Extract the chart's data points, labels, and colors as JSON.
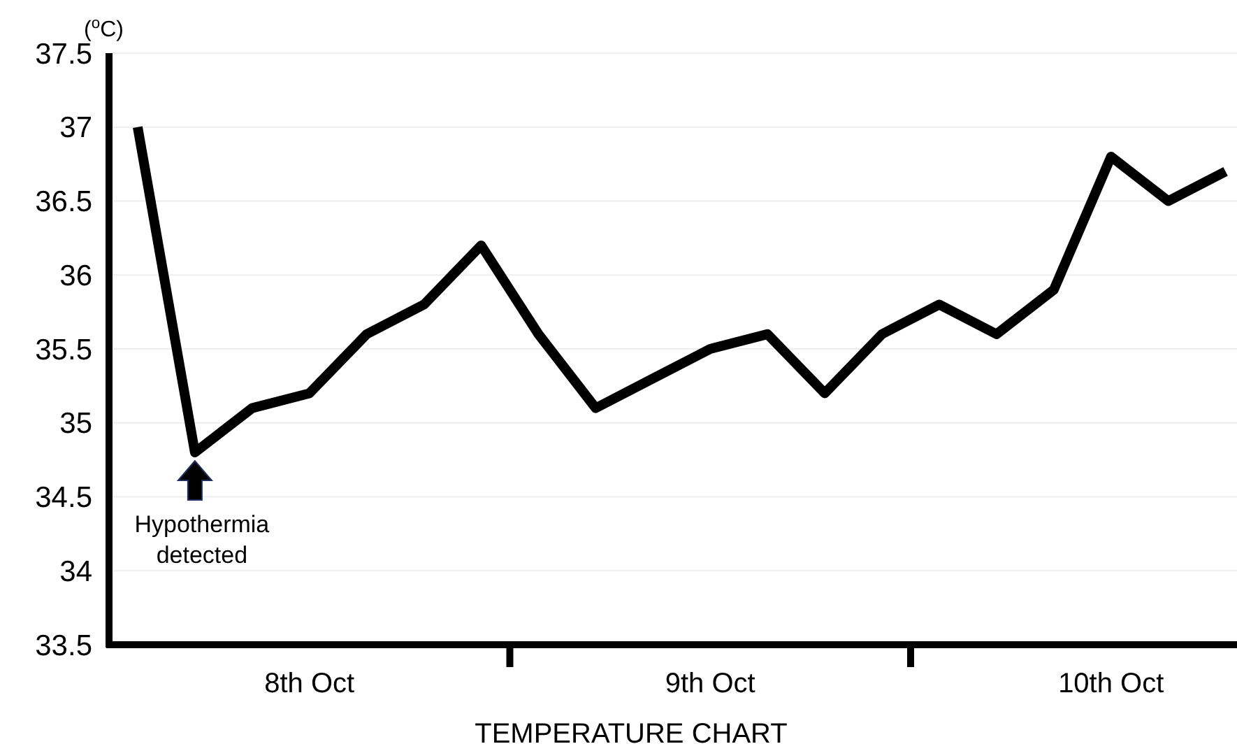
{
  "chart_data": {
    "type": "line",
    "xlabel": "TEMPERATURE CHART",
    "ylabel": "($^{o}$C)",
    "categories": [
      null,
      null,
      null,
      "8th Oct",
      null,
      null,
      null,
      null,
      null,
      null,
      "9th Oct",
      null,
      null,
      null,
      null,
      null,
      null,
      "10th Oct",
      null,
      null
    ],
    "series": [
      {
        "color": "#000000",
        "values": [
          37,
          34.8,
          35.1,
          35.2,
          35.6,
          35.8,
          36.2,
          35.6,
          35.1,
          35.3,
          35.5,
          35.6,
          35.2,
          35.6,
          35.8,
          35.6,
          35.9,
          36.8,
          36.5,
          36.7
        ]
      }
    ],
    "ylim": [
      33.5,
      37.5
    ],
    "yticks": [
      33.5,
      34,
      34.5,
      35,
      35.5,
      36,
      36.5,
      37,
      37.5
    ],
    "grid": "y",
    "marker": "none",
    "line_style": "solid",
    "annotations": [
      {
        "text": "Hypothermia detected",
        "y": 34.8
      }
    ]
  }
}
